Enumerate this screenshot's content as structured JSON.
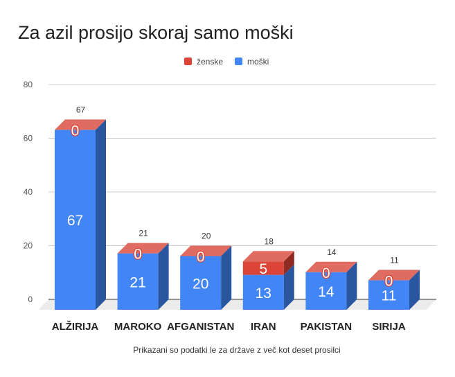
{
  "chart_data": {
    "type": "bar",
    "stacked": true,
    "title": "Za azil prosijo skoraj samo moški",
    "subtitle_note": "Prikazani so podatki le za države z več kot deset prosilci",
    "categories": [
      "ALŽIRIJA",
      "MAROKO",
      "AFGANISTAN",
      "IRAN",
      "PAKISTAN",
      "SIRIJA"
    ],
    "series": [
      {
        "name": "moški",
        "values": [
          67,
          21,
          20,
          13,
          14,
          11
        ],
        "color": "#4285f4",
        "side": "#2a56a0"
      },
      {
        "name": "ženske",
        "values": [
          0,
          0,
          0,
          5,
          0,
          0
        ],
        "color": "#db4437",
        "side": "#8e2b22"
      }
    ],
    "totals": [
      67,
      21,
      20,
      18,
      14,
      11
    ],
    "legend": [
      "ženske",
      "moški"
    ],
    "legend_position": "top",
    "yticks": [
      0,
      20,
      40,
      60,
      80
    ],
    "ylim": [
      0,
      80
    ],
    "grid": true
  }
}
